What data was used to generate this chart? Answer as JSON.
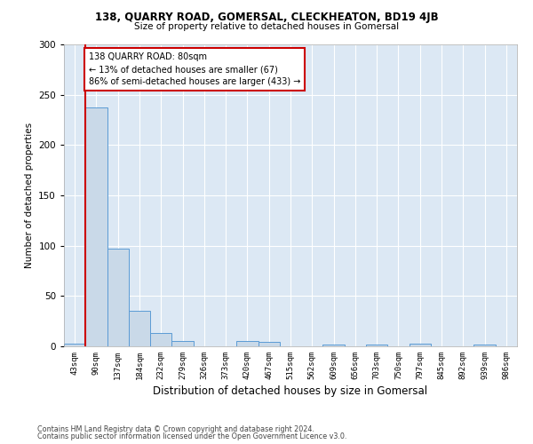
{
  "title1": "138, QUARRY ROAD, GOMERSAL, CLECKHEATON, BD19 4JB",
  "title2": "Size of property relative to detached houses in Gomersal",
  "xlabel": "Distribution of detached houses by size in Gomersal",
  "ylabel": "Number of detached properties",
  "footnote1": "Contains HM Land Registry data © Crown copyright and database right 2024.",
  "footnote2": "Contains public sector information licensed under the Open Government Licence v3.0.",
  "categories": [
    "43sqm",
    "90sqm",
    "137sqm",
    "184sqm",
    "232sqm",
    "279sqm",
    "326sqm",
    "373sqm",
    "420sqm",
    "467sqm",
    "515sqm",
    "562sqm",
    "609sqm",
    "656sqm",
    "703sqm",
    "750sqm",
    "797sqm",
    "845sqm",
    "892sqm",
    "939sqm",
    "986sqm"
  ],
  "values": [
    3,
    237,
    97,
    35,
    13,
    5,
    0,
    0,
    5,
    4,
    0,
    0,
    2,
    0,
    2,
    0,
    3,
    0,
    0,
    2,
    0
  ],
  "bar_color": "#c9d9e8",
  "bar_edge_color": "#5b9bd5",
  "highlight_bar_index": 1,
  "annotation_text": "138 QUARRY ROAD: 80sqm\n← 13% of detached houses are smaller (67)\n86% of semi-detached houses are larger (433) →",
  "annotation_box_color": "#ffffff",
  "annotation_box_edge": "#cc0000",
  "marker_line_color": "#cc0000",
  "ylim": [
    0,
    300
  ],
  "yticks": [
    0,
    50,
    100,
    150,
    200,
    250,
    300
  ],
  "background_color": "#ffffff",
  "plot_bg_color": "#dce8f4"
}
